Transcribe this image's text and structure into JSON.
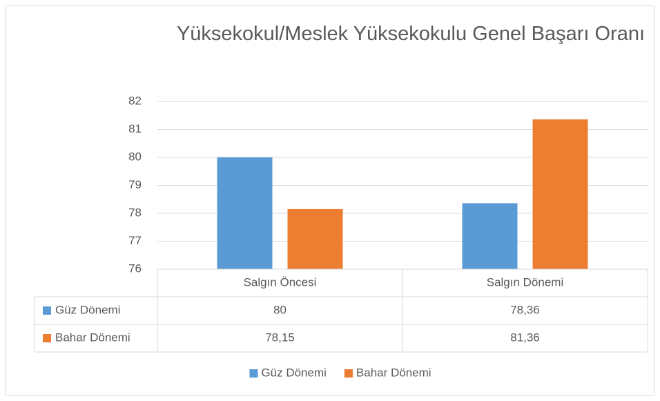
{
  "chart_data": {
    "type": "bar",
    "title": "Yüksekokul/Meslek Yüksekokulu Genel Başarı Oranı",
    "categories": [
      "Salgın Öncesi",
      "Salgın Dönemi"
    ],
    "series": [
      {
        "name": "Güz Dönemi",
        "color": "#5b9bd5",
        "values": [
          80,
          78.36
        ],
        "value_labels": [
          "80",
          "78,36"
        ]
      },
      {
        "name": "Bahar Dönemi",
        "color": "#ed7d31",
        "values": [
          78.15,
          81.36
        ],
        "value_labels": [
          "78,15",
          "81,36"
        ]
      }
    ],
    "ylim": [
      76,
      82
    ],
    "yticks": [
      76,
      77,
      78,
      79,
      80,
      81,
      82
    ],
    "grid": true,
    "legend": "bottom"
  }
}
